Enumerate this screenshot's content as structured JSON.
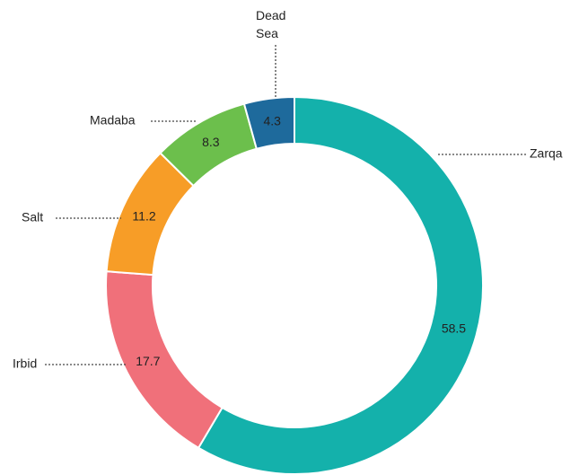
{
  "chart_data": {
    "type": "donut",
    "categories": [
      "Zarqa",
      "Irbid",
      "Salt",
      "Madaba",
      "Dead Sea"
    ],
    "values": [
      58.5,
      17.7,
      11.2,
      8.3,
      4.3
    ],
    "colors": [
      "#14b1ab",
      "#f0707a",
      "#f79d27",
      "#6cbf4c",
      "#1e6a9c"
    ]
  }
}
